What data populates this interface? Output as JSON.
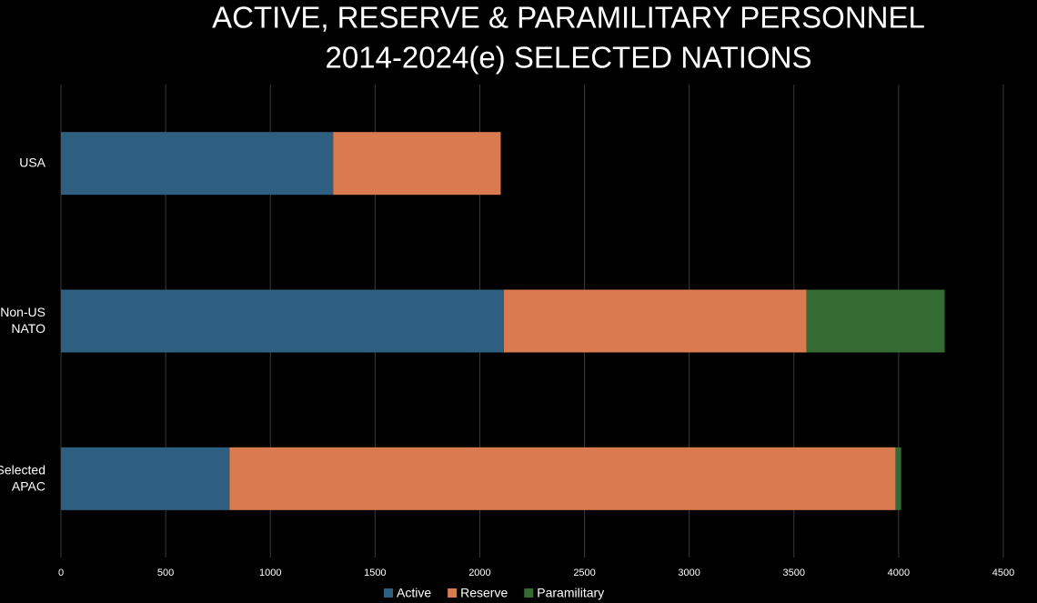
{
  "chart_data": {
    "type": "bar",
    "orientation": "horizontal",
    "stacked": true,
    "title": [
      "ACTIVE, RESERVE & PARAMILITARY PERSONNEL",
      "2014-2024(e) SELECTED NATIONS"
    ],
    "categories": [
      "USA",
      "Non-US NATO",
      "Selected APAC"
    ],
    "series": [
      {
        "name": "Active",
        "color": "#2e5f80",
        "values": [
          1300,
          2115,
          805
        ]
      },
      {
        "name": "Reserve",
        "color": "#d97b4e",
        "values": [
          800,
          1445,
          3180
        ]
      },
      {
        "name": "Paramilitary",
        "color": "#346b33",
        "values": [
          0,
          660,
          27
        ]
      }
    ],
    "xlim": [
      0,
      4500
    ],
    "xticks": [
      0,
      500,
      1000,
      1500,
      2000,
      2500,
      3000,
      3500,
      4000,
      4500
    ],
    "grid": true,
    "legend": "bottom"
  }
}
